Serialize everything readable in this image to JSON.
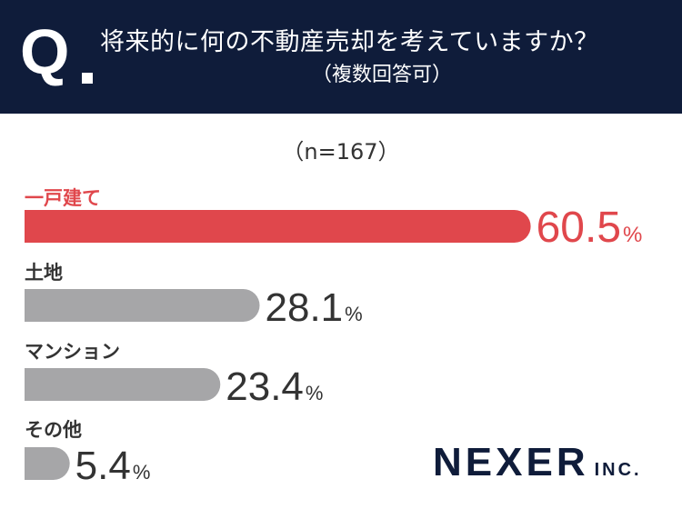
{
  "header": {
    "q_mark": "Q",
    "question": "将来的に何の不動産売却を考えていますか？",
    "note": "（複数回答可）"
  },
  "sample_label": "（n=167）",
  "logo": {
    "main": "NEXER",
    "suffix": "INC."
  },
  "colors": {
    "highlight": "#e0474c",
    "bar": "#a6a6a8",
    "header_bg": "#0f1c3a",
    "text": "#333333"
  },
  "chart_data": {
    "type": "bar",
    "orientation": "horizontal",
    "title": "将来的に何の不動産売却を考えていますか？",
    "subtitle": "（複数回答可）",
    "sample": "（n=167）",
    "categories": [
      "一戸建て",
      "土地",
      "マンション",
      "その他"
    ],
    "values": [
      60.5,
      28.1,
      23.4,
      5.4
    ],
    "value_labels": [
      "60.5",
      "28.1",
      "23.4",
      "5.4"
    ],
    "unit": "%",
    "highlight_index": 0
  }
}
